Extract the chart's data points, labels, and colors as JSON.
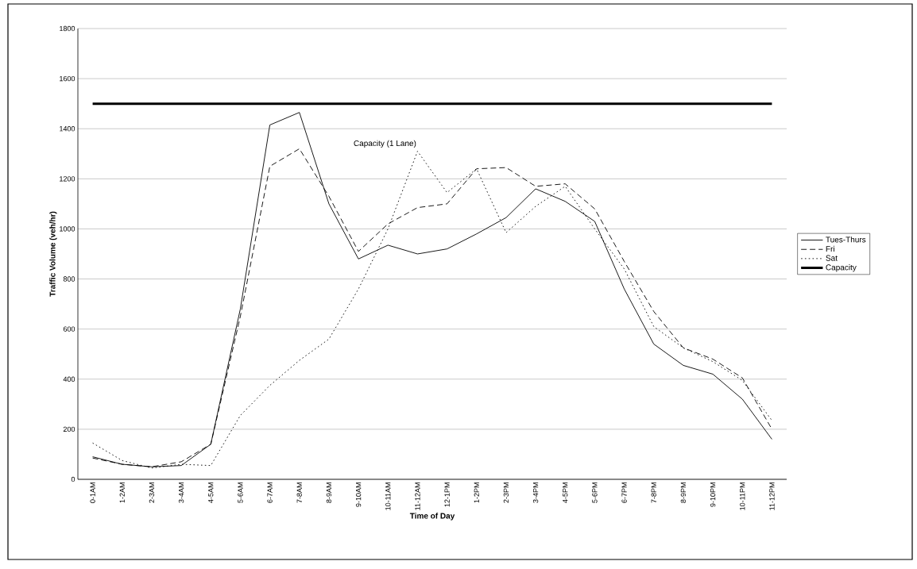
{
  "chart_data": {
    "type": "line",
    "xlabel": "Time of Day",
    "ylabel": "Traffic Volume (veh/hr)",
    "categories": [
      "0-1AM",
      "1-2AM",
      "2-3AM",
      "3-4AM",
      "4-5AM",
      "5-6AM",
      "6-7AM",
      "7-8AM",
      "8-9AM",
      "9-10AM",
      "10-11AM",
      "11-12AM",
      "12-1PM",
      "1-2PM",
      "2-3PM",
      "3-4PM",
      "4-5PM",
      "5-6PM",
      "6-7PM",
      "7-8PM",
      "8-9PM",
      "9-10PM",
      "10-11PM",
      "11-12PM"
    ],
    "series": [
      {
        "name": "Tues-Thurs",
        "color": "#000000",
        "line_style": "solid",
        "values": [
          90,
          60,
          50,
          55,
          140,
          680,
          1415,
          1465,
          1100,
          880,
          935,
          900,
          920,
          980,
          1045,
          1160,
          1110,
          1030,
          760,
          540,
          455,
          420,
          320,
          160
        ]
      },
      {
        "name": "Fri",
        "color": "#000000",
        "line_style": "dashed",
        "values": [
          85,
          60,
          50,
          70,
          140,
          650,
          1250,
          1320,
          1130,
          910,
          1020,
          1085,
          1100,
          1240,
          1245,
          1170,
          1180,
          1080,
          870,
          670,
          525,
          480,
          405,
          200
        ]
      },
      {
        "name": "Sat",
        "color": "#000000",
        "line_style": "dotted",
        "values": [
          145,
          75,
          45,
          60,
          55,
          255,
          375,
          475,
          560,
          760,
          1000,
          1310,
          1145,
          1240,
          985,
          1090,
          1170,
          1000,
          840,
          610,
          525,
          470,
          395,
          235
        ]
      }
    ],
    "ref_lines": [
      {
        "axis": "y",
        "value": 1500,
        "label": "Capacity",
        "color": "#000000",
        "line_style": "solid"
      }
    ],
    "annotations": [
      "Capacity (1 Lane)"
    ],
    "ylim": [
      0,
      1800
    ],
    "yticks": [
      0,
      200,
      400,
      600,
      800,
      1000,
      1200,
      1400,
      1600,
      1800
    ],
    "grid": "y",
    "legend": "right",
    "marker": "none"
  }
}
